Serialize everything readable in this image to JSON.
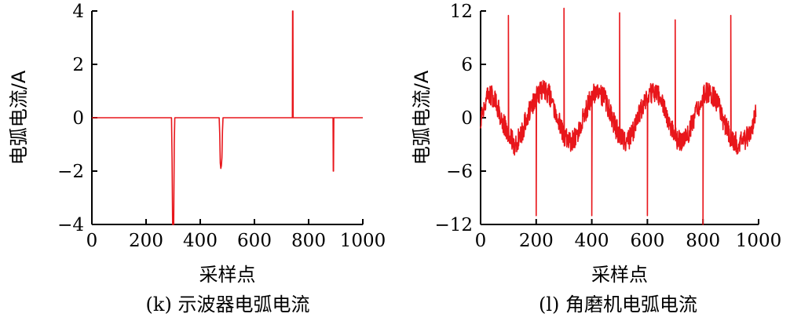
{
  "chart_data": [
    {
      "type": "line",
      "caption": "(k) 示波器电弧电流",
      "xlabel": "采样点",
      "ylabel": "电弧电流/A",
      "xlim": [
        0,
        1000
      ],
      "ylim": [
        -4,
        4
      ],
      "x_ticks": [
        0,
        200,
        400,
        600,
        800,
        1000
      ],
      "y_ticks": [
        -4,
        -2,
        0,
        2,
        4
      ],
      "x_tick_labels": [
        "0",
        "200",
        "400",
        "600",
        "800",
        "1000"
      ],
      "y_tick_labels": [
        "−4",
        "−2",
        "0",
        "2",
        "4"
      ],
      "series": [
        {
          "color": "#e8161b",
          "x": [
            0,
            294,
            296,
            298,
            300,
            302,
            304,
            306,
            310,
            470,
            472,
            474,
            476,
            478,
            480,
            482,
            484,
            486,
            488,
            740,
            741,
            742,
            743,
            744,
            890,
            891,
            892,
            893,
            894,
            1000
          ],
          "y": [
            0,
            0,
            -1.5,
            -4,
            -3.7,
            -4,
            -1,
            0,
            0,
            0,
            -0.6,
            -1.7,
            -1.9,
            -1.8,
            -1.5,
            -0.5,
            0,
            0,
            0,
            0,
            4,
            4,
            0,
            0,
            0,
            -2,
            -2,
            0,
            0,
            0
          ]
        }
      ]
    },
    {
      "type": "line",
      "caption": "(l) 角磨机电弧电流",
      "xlabel": "采样点",
      "ylabel": "电弧电流/A",
      "xlim": [
        0,
        1000
      ],
      "ylim": [
        -12,
        12
      ],
      "x_ticks": [
        0,
        200,
        400,
        600,
        800,
        1000
      ],
      "y_ticks": [
        -12,
        -6,
        0,
        6,
        12
      ],
      "x_tick_labels": [
        "0",
        "200",
        "400",
        "600",
        "800",
        "1000"
      ],
      "y_tick_labels": [
        "−12",
        "−6",
        "0",
        "6",
        "12"
      ],
      "spikes": [
        {
          "x": 100,
          "y": 11.5
        },
        {
          "x": 200,
          "y": -11
        },
        {
          "x": 300,
          "y": 12.3
        },
        {
          "x": 400,
          "y": -11
        },
        {
          "x": 500,
          "y": 11.8
        },
        {
          "x": 600,
          "y": -11
        },
        {
          "x": 700,
          "y": 11
        },
        {
          "x": 800,
          "y": -12
        },
        {
          "x": 900,
          "y": 11.5
        }
      ],
      "series": [
        {
          "color": "#e8161b",
          "x": [
            0,
            25,
            50,
            75,
            100,
            125,
            150,
            175,
            200,
            225,
            250,
            275,
            300,
            325,
            350,
            375,
            400,
            425,
            450,
            475,
            500,
            525,
            550,
            575,
            600,
            625,
            650,
            675,
            700,
            725,
            750,
            775,
            800,
            825,
            850,
            875,
            900,
            925,
            950,
            975,
            990
          ],
          "y": [
            0,
            2.8,
            2.2,
            0,
            -2,
            -3.2,
            -1.5,
            0.8,
            2.5,
            3.2,
            2.5,
            0.2,
            -2,
            -2.8,
            -1.8,
            0.5,
            2.5,
            3,
            2,
            -0.2,
            -2.2,
            -3,
            -1.5,
            0.8,
            2.5,
            3,
            2,
            -0.2,
            -2.2,
            -2.8,
            -1.5,
            0.5,
            2.5,
            3,
            1.8,
            -0.5,
            -2.2,
            -3,
            -2.5,
            -1.5,
            0.5
          ]
        }
      ]
    }
  ]
}
